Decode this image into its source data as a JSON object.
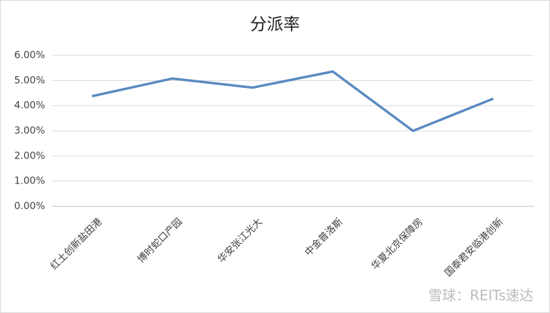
{
  "chart_data": {
    "type": "line",
    "title": "分派率",
    "categories": [
      "红土创新盐田港",
      "博时蛇口产园",
      "华安张江光大",
      "中金普洛斯",
      "华夏北京保障房",
      "国泰君安临港创新"
    ],
    "values": [
      4.38,
      5.08,
      4.72,
      5.36,
      3.0,
      4.28
    ],
    "color": "#5a8ac0",
    "ylim": [
      0,
      6
    ],
    "yticks": [
      {
        "value": 0,
        "label": "0.00%"
      },
      {
        "value": 1,
        "label": "1.00%"
      },
      {
        "value": 2,
        "label": "2.00%"
      },
      {
        "value": 3,
        "label": "3.00%"
      },
      {
        "value": 4,
        "label": "4.00%"
      },
      {
        "value": 5,
        "label": "5.00%"
      },
      {
        "value": 6,
        "label": "6.00%"
      }
    ],
    "grid": true,
    "watermark": "雪球：REITs速达"
  }
}
